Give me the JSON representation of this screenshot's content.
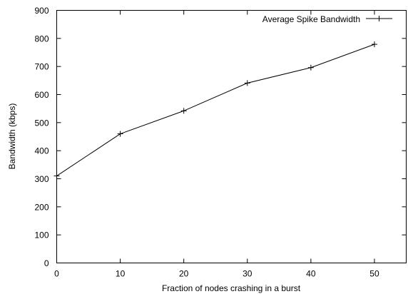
{
  "chart_data": {
    "type": "line",
    "title": "",
    "xlabel": "Fraction of nodes crashing in a burst",
    "ylabel": "Bandwidth (kbps)",
    "xlim": [
      0,
      55
    ],
    "ylim": [
      0,
      900
    ],
    "x_ticks": [
      "0",
      "10",
      "20",
      "30",
      "40",
      "50"
    ],
    "y_ticks": [
      "0",
      "100",
      "200",
      "300",
      "400",
      "500",
      "600",
      "700",
      "800",
      "900"
    ],
    "grid": false,
    "legend_position": "top-right",
    "series": [
      {
        "name": "Average Spike Bandwidth",
        "marker": "plus",
        "color": "#000000",
        "x": [
          0,
          10,
          20,
          30,
          40,
          50
        ],
        "y": [
          310,
          460,
          542,
          641,
          696,
          779
        ]
      }
    ]
  }
}
